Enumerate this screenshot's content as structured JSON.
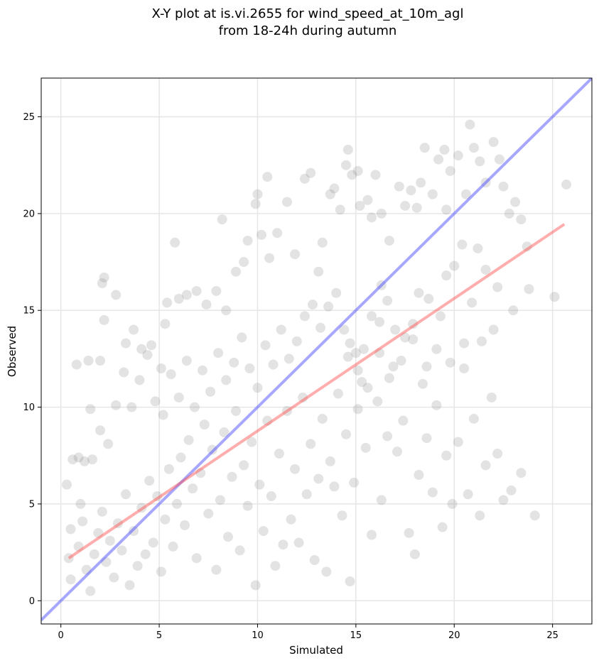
{
  "chart_data": {
    "type": "scatter",
    "title_line1": "X-Y plot at is.vi.2655 for wind_speed_at_10m_agl",
    "title_line2": "from 18-24h during autumn",
    "xlabel": "Simulated",
    "ylabel": "Observed",
    "xlim": [
      -1.0,
      27.0
    ],
    "ylim": [
      -1.2,
      27.0
    ],
    "xticks": [
      0,
      5,
      10,
      15,
      20,
      25
    ],
    "yticks": [
      0,
      5,
      10,
      15,
      20,
      25
    ],
    "grid": true,
    "colors": {
      "points": "#808080",
      "identity_line": "#3b3bff",
      "fit_line": "#ff4a4a"
    },
    "identity_line": {
      "x": [
        -1.0,
        27.0
      ],
      "y": [
        -1.0,
        27.0
      ]
    },
    "fit_line": {
      "x": [
        0.4,
        25.6
      ],
      "y": [
        2.2,
        19.45
      ]
    },
    "series": [
      {
        "points": [
          [
            0.3,
            6.0
          ],
          [
            0.8,
            12.2
          ],
          [
            1.4,
            12.4
          ],
          [
            1.5,
            9.9
          ],
          [
            2.0,
            12.4
          ],
          [
            2.2,
            16.7
          ],
          [
            2.1,
            16.4
          ],
          [
            2.2,
            14.5
          ],
          [
            2.8,
            15.8
          ],
          [
            3.3,
            13.3
          ],
          [
            3.7,
            14.0
          ],
          [
            4.1,
            13.0
          ],
          [
            4.6,
            13.2
          ],
          [
            5.1,
            12.0
          ],
          [
            5.4,
            15.4
          ],
          [
            5.3,
            14.3
          ],
          [
            5.8,
            18.5
          ],
          [
            6.0,
            15.6
          ],
          [
            6.4,
            15.8
          ],
          [
            6.9,
            16.0
          ],
          [
            7.4,
            15.3
          ],
          [
            7.9,
            16.0
          ],
          [
            8.2,
            19.7
          ],
          [
            8.4,
            15.0
          ],
          [
            8.9,
            17.0
          ],
          [
            9.3,
            17.5
          ],
          [
            9.5,
            18.6
          ],
          [
            9.9,
            20.5
          ],
          [
            10.0,
            21.0
          ],
          [
            10.5,
            21.9
          ],
          [
            10.2,
            18.9
          ],
          [
            10.6,
            17.7
          ],
          [
            11.0,
            19.0
          ],
          [
            11.5,
            20.6
          ],
          [
            11.9,
            17.9
          ],
          [
            12.4,
            21.8
          ],
          [
            12.7,
            22.1
          ],
          [
            13.1,
            17.0
          ],
          [
            13.3,
            18.5
          ],
          [
            13.7,
            21.0
          ],
          [
            13.9,
            21.3
          ],
          [
            14.2,
            20.2
          ],
          [
            14.5,
            22.5
          ],
          [
            14.6,
            23.3
          ],
          [
            14.8,
            22.0
          ],
          [
            15.1,
            22.2
          ],
          [
            15.2,
            20.4
          ],
          [
            15.6,
            20.7
          ],
          [
            15.8,
            19.8
          ],
          [
            16.0,
            22.0
          ],
          [
            16.3,
            20.0
          ],
          [
            16.3,
            16.3
          ],
          [
            16.7,
            18.6
          ],
          [
            17.2,
            21.4
          ],
          [
            17.5,
            20.4
          ],
          [
            17.8,
            21.2
          ],
          [
            18.1,
            20.3
          ],
          [
            18.3,
            21.6
          ],
          [
            18.5,
            23.4
          ],
          [
            18.9,
            21.0
          ],
          [
            19.2,
            22.8
          ],
          [
            19.5,
            23.3
          ],
          [
            19.6,
            20.2
          ],
          [
            19.8,
            22.2
          ],
          [
            20.2,
            23.0
          ],
          [
            20.6,
            21.0
          ],
          [
            20.8,
            24.6
          ],
          [
            21.0,
            23.4
          ],
          [
            21.3,
            22.7
          ],
          [
            21.6,
            21.6
          ],
          [
            22.0,
            23.7
          ],
          [
            22.3,
            22.8
          ],
          [
            22.5,
            21.4
          ],
          [
            22.8,
            20.0
          ],
          [
            23.1,
            20.6
          ],
          [
            23.4,
            19.7
          ],
          [
            23.7,
            18.3
          ],
          [
            23.8,
            16.1
          ],
          [
            23.0,
            15.0
          ],
          [
            25.1,
            15.7
          ],
          [
            25.7,
            21.5
          ],
          [
            22.2,
            16.2
          ],
          [
            21.6,
            17.1
          ],
          [
            21.2,
            18.2
          ],
          [
            20.4,
            18.4
          ],
          [
            20.0,
            17.3
          ],
          [
            19.6,
            16.8
          ],
          [
            19.3,
            14.7
          ],
          [
            18.7,
            15.6
          ],
          [
            18.2,
            15.9
          ],
          [
            17.9,
            14.3
          ],
          [
            17.5,
            13.6
          ],
          [
            17.0,
            14.0
          ],
          [
            16.6,
            15.5
          ],
          [
            16.2,
            14.4
          ],
          [
            15.8,
            14.7
          ],
          [
            15.4,
            13.0
          ],
          [
            15.0,
            12.8
          ],
          [
            14.7,
            13.3
          ],
          [
            14.4,
            14.0
          ],
          [
            14.0,
            15.9
          ],
          [
            13.6,
            15.2
          ],
          [
            13.2,
            14.1
          ],
          [
            12.8,
            15.3
          ],
          [
            12.4,
            14.7
          ],
          [
            12.0,
            13.4
          ],
          [
            11.6,
            12.5
          ],
          [
            11.2,
            14.0
          ],
          [
            10.8,
            12.2
          ],
          [
            10.4,
            13.2
          ],
          [
            10.0,
            11.0
          ],
          [
            9.6,
            12.0
          ],
          [
            9.2,
            13.6
          ],
          [
            8.8,
            12.3
          ],
          [
            8.4,
            11.4
          ],
          [
            8.0,
            12.8
          ],
          [
            7.6,
            10.8
          ],
          [
            7.2,
            11.9
          ],
          [
            6.8,
            10.0
          ],
          [
            6.4,
            12.4
          ],
          [
            6.0,
            10.5
          ],
          [
            5.6,
            11.7
          ],
          [
            5.2,
            9.6
          ],
          [
            4.8,
            10.3
          ],
          [
            4.4,
            12.7
          ],
          [
            4.0,
            11.4
          ],
          [
            3.6,
            10.0
          ],
          [
            3.2,
            11.8
          ],
          [
            2.8,
            10.1
          ],
          [
            2.4,
            8.1
          ],
          [
            2.0,
            8.8
          ],
          [
            1.6,
            7.3
          ],
          [
            1.2,
            7.2
          ],
          [
            0.9,
            7.4
          ],
          [
            0.6,
            7.3
          ],
          [
            1.0,
            5.0
          ],
          [
            0.5,
            3.7
          ],
          [
            0.4,
            2.2
          ],
          [
            0.5,
            1.1
          ],
          [
            0.9,
            2.8
          ],
          [
            1.1,
            4.1
          ],
          [
            1.3,
            1.6
          ],
          [
            1.5,
            0.5
          ],
          [
            1.7,
            2.4
          ],
          [
            1.9,
            3.5
          ],
          [
            2.1,
            4.6
          ],
          [
            2.3,
            2.0
          ],
          [
            2.5,
            3.1
          ],
          [
            2.7,
            1.2
          ],
          [
            2.9,
            4.0
          ],
          [
            3.1,
            2.6
          ],
          [
            3.3,
            5.5
          ],
          [
            3.5,
            0.8
          ],
          [
            3.7,
            3.6
          ],
          [
            3.9,
            1.8
          ],
          [
            4.1,
            4.8
          ],
          [
            4.3,
            2.4
          ],
          [
            4.5,
            6.2
          ],
          [
            4.7,
            3.0
          ],
          [
            4.9,
            5.4
          ],
          [
            5.1,
            1.5
          ],
          [
            5.3,
            4.2
          ],
          [
            5.5,
            6.8
          ],
          [
            5.7,
            2.8
          ],
          [
            5.9,
            5.0
          ],
          [
            6.1,
            7.4
          ],
          [
            6.3,
            3.9
          ],
          [
            6.5,
            8.3
          ],
          [
            6.7,
            5.8
          ],
          [
            6.9,
            2.2
          ],
          [
            7.1,
            6.6
          ],
          [
            7.3,
            9.1
          ],
          [
            7.5,
            4.5
          ],
          [
            7.7,
            7.8
          ],
          [
            7.9,
            1.6
          ],
          [
            8.1,
            5.2
          ],
          [
            8.3,
            8.7
          ],
          [
            8.5,
            3.3
          ],
          [
            8.7,
            6.4
          ],
          [
            8.9,
            9.8
          ],
          [
            9.1,
            2.6
          ],
          [
            9.3,
            7.0
          ],
          [
            9.5,
            4.9
          ],
          [
            9.7,
            8.2
          ],
          [
            9.9,
            0.8
          ],
          [
            10.1,
            6.0
          ],
          [
            10.3,
            3.6
          ],
          [
            10.5,
            9.3
          ],
          [
            10.7,
            5.4
          ],
          [
            10.9,
            1.8
          ],
          [
            11.1,
            7.6
          ],
          [
            11.3,
            2.9
          ],
          [
            11.5,
            9.8
          ],
          [
            11.7,
            4.2
          ],
          [
            11.9,
            6.8
          ],
          [
            12.1,
            3.0
          ],
          [
            12.3,
            10.5
          ],
          [
            12.5,
            5.5
          ],
          [
            12.7,
            8.1
          ],
          [
            12.9,
            2.1
          ],
          [
            13.1,
            6.3
          ],
          [
            13.3,
            9.4
          ],
          [
            13.5,
            1.5
          ],
          [
            13.7,
            7.2
          ],
          [
            13.9,
            5.9
          ],
          [
            14.1,
            10.7
          ],
          [
            14.3,
            4.4
          ],
          [
            14.5,
            8.6
          ],
          [
            14.7,
            1.0
          ],
          [
            14.9,
            6.1
          ],
          [
            15.1,
            9.9
          ],
          [
            15.3,
            11.3
          ],
          [
            15.5,
            7.9
          ],
          [
            15.8,
            3.4
          ],
          [
            16.1,
            10.3
          ],
          [
            16.3,
            5.2
          ],
          [
            16.6,
            8.5
          ],
          [
            16.9,
            12.1
          ],
          [
            17.1,
            7.7
          ],
          [
            17.4,
            9.3
          ],
          [
            17.7,
            3.5
          ],
          [
            18.0,
            2.4
          ],
          [
            18.2,
            6.5
          ],
          [
            18.4,
            11.2
          ],
          [
            18.6,
            8.4
          ],
          [
            18.9,
            5.6
          ],
          [
            19.1,
            10.1
          ],
          [
            19.4,
            3.8
          ],
          [
            19.6,
            7.5
          ],
          [
            19.9,
            5.0
          ],
          [
            20.2,
            8.2
          ],
          [
            20.5,
            12.0
          ],
          [
            20.7,
            5.5
          ],
          [
            21.0,
            9.4
          ],
          [
            21.3,
            4.4
          ],
          [
            21.6,
            7.0
          ],
          [
            21.9,
            10.5
          ],
          [
            22.2,
            7.6
          ],
          [
            22.5,
            5.2
          ],
          [
            22.9,
            5.7
          ],
          [
            23.4,
            6.6
          ],
          [
            24.1,
            4.4
          ],
          [
            22.0,
            14.0
          ],
          [
            21.4,
            13.4
          ],
          [
            20.9,
            15.4
          ],
          [
            20.5,
            13.3
          ],
          [
            19.8,
            12.3
          ],
          [
            19.1,
            13.0
          ],
          [
            18.6,
            12.1
          ],
          [
            17.9,
            13.5
          ],
          [
            17.3,
            12.4
          ],
          [
            16.7,
            11.5
          ],
          [
            16.2,
            12.8
          ],
          [
            15.6,
            11.0
          ],
          [
            15.1,
            11.9
          ],
          [
            14.6,
            12.6
          ]
        ]
      }
    ]
  }
}
